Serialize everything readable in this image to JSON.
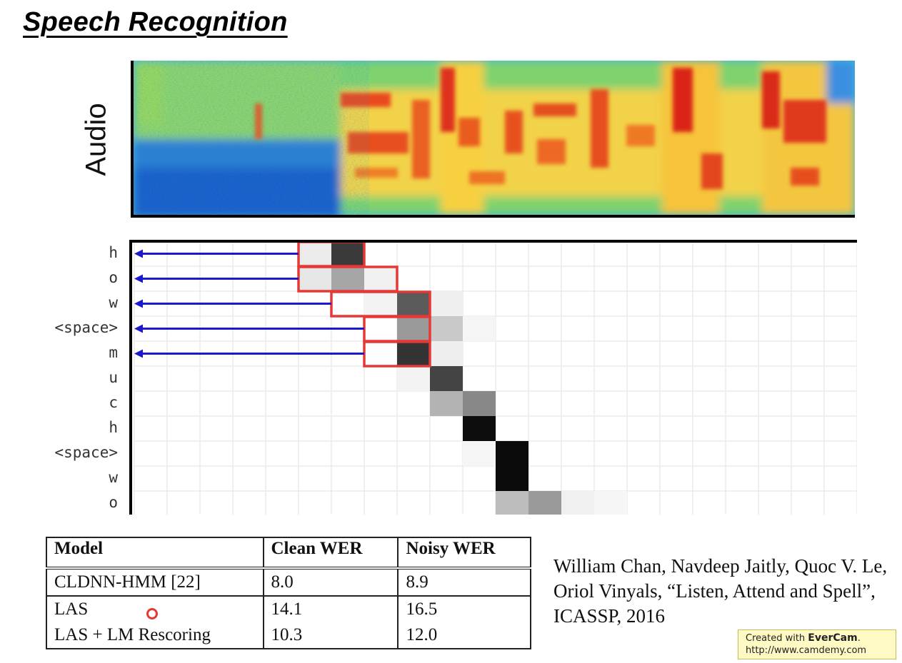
{
  "slide": {
    "title": "Speech Recognition",
    "audio_label": "Audio"
  },
  "attention": {
    "output_tokens": [
      "h",
      "o",
      "w",
      "<space>",
      "m",
      "u",
      "c",
      "h",
      "<space>",
      "w",
      "o"
    ],
    "highlight_rows": 5,
    "grid_columns": 22,
    "highlight_color": "#e53935",
    "arrow_color": "#1a1acc"
  },
  "table": {
    "headers": [
      "Model",
      "Clean WER",
      "Noisy WER"
    ],
    "rows": [
      [
        "CLDNN-HMM [22]",
        "8.0",
        "8.9"
      ],
      [
        "LAS",
        "14.1",
        "16.5"
      ],
      [
        "LAS + LM Rescoring",
        "10.3",
        "12.0"
      ]
    ]
  },
  "citation": "William Chan, Navdeep Jaitly, Quoc V. Le, Oriol Vinyals, “Listen, Attend and Spell”, ICASSP, 2016",
  "watermark": {
    "prefix": "Created with ",
    "brand": "EverCam",
    "suffix": ".",
    "url": "http://www.camdemy.com"
  }
}
